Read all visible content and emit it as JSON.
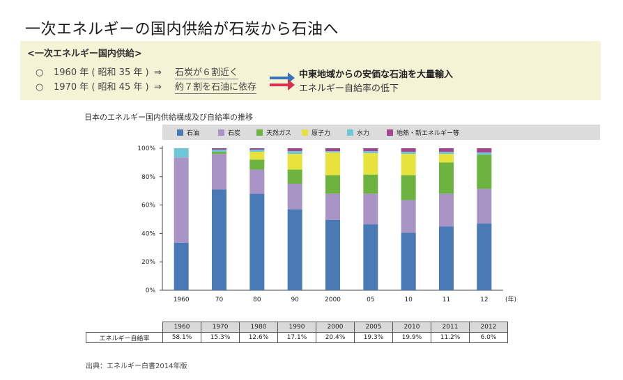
{
  "title": "一次エネルギーの国内供給が石炭から石油へ",
  "summary": {
    "heading": "<一次エネルギー国内供給>",
    "bullet": "○",
    "arrow": "⇒",
    "rows": [
      {
        "year": "1960 年 ( 昭和 35 年 )",
        "note": "石炭が６割近く"
      },
      {
        "year": "1970 年 ( 昭和 45 年 )",
        "note": "約７割を石油に依存"
      }
    ],
    "consequence_main": "中東地域からの安価な石油を大量輸入",
    "consequence_sub": "エネルギー自給率の低下",
    "arrow_colors": [
      "#3b73b9",
      "#d9304f"
    ]
  },
  "chart_data": {
    "type": "bar",
    "stacked": true,
    "title": "日本のエネルギー国内供給構成及び自給率の推移",
    "categories": [
      "1960",
      "70",
      "80",
      "90",
      "2000",
      "05",
      "10",
      "11",
      "12"
    ],
    "x_unit": "(年)",
    "ylim": [
      0,
      100
    ],
    "yticks": [
      "0%",
      "20%",
      "40%",
      "60%",
      "80%",
      "100%"
    ],
    "legend_position": "top",
    "series": [
      {
        "name": "石油",
        "color": "#4a7ab5",
        "values": [
          33.5,
          71,
          68,
          57,
          49.5,
          46.5,
          40.5,
          45,
          47
        ]
      },
      {
        "name": "石炭",
        "color": "#a994c6",
        "values": [
          60,
          25,
          17,
          18,
          18.5,
          21.5,
          23,
          23,
          24.5
        ]
      },
      {
        "name": "天然ガス",
        "color": "#6db33f",
        "values": [
          0,
          1.5,
          7,
          10,
          13,
          13.5,
          17.5,
          22,
          24
        ]
      },
      {
        "name": "原子力",
        "color": "#e8e33c",
        "values": [
          0,
          0,
          5.5,
          11,
          16,
          15,
          15,
          6,
          0
        ]
      },
      {
        "name": "水力",
        "color": "#6ec6d6",
        "values": [
          6.5,
          1.5,
          1.5,
          2,
          1,
          1.5,
          1.5,
          1.5,
          1.5
        ]
      },
      {
        "name": "地熱・新エネルギー等",
        "color": "#a4458f",
        "values": [
          0,
          1,
          1,
          2,
          2,
          2,
          2.5,
          2.5,
          3
        ]
      }
    ]
  },
  "table": {
    "row_label": "エネルギー自給率",
    "years": [
      "1960",
      "1970",
      "1980",
      "1990",
      "2000",
      "2005",
      "2010",
      "2011",
      "2012"
    ],
    "values": [
      "58.1%",
      "15.3%",
      "12.6%",
      "17.1%",
      "20.4%",
      "19.3%",
      "19.9%",
      "11.2%",
      "6.0%"
    ]
  },
  "source": "出典：エネルギー白書2014年版"
}
